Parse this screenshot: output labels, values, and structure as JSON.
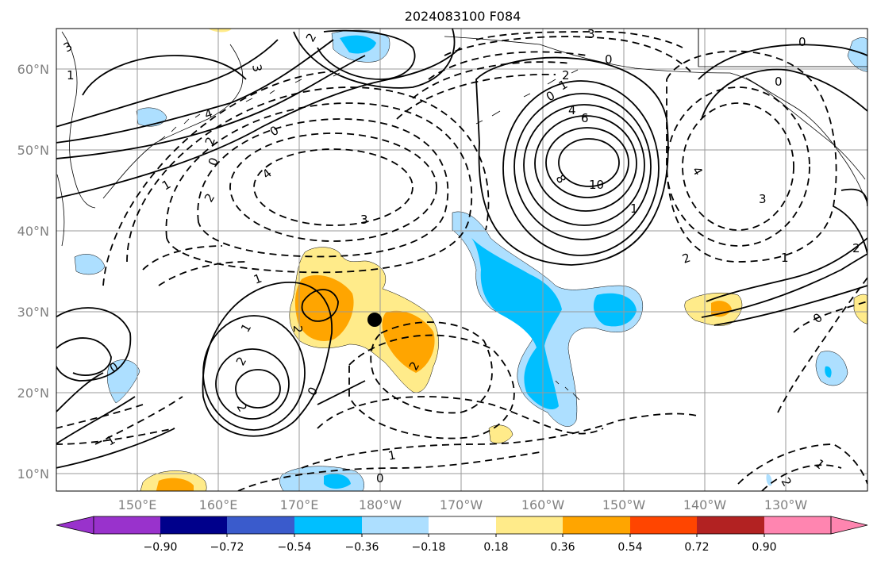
{
  "title": "2024083100 F084",
  "lat_labels": [
    "60°N",
    "50°N",
    "40°N",
    "30°N",
    "20°N",
    "10°N"
  ],
  "lon_labels": [
    "150°E",
    "160°E",
    "170°E",
    "180°W",
    "170°W",
    "160°W",
    "150°W",
    "140°W",
    "130°W"
  ],
  "colorbar": {
    "tick_labels": [
      "−0.90",
      "−0.72",
      "−0.54",
      "−0.36",
      "−0.18",
      "0.18",
      "0.36",
      "0.54",
      "0.72",
      "0.90"
    ],
    "colors": [
      "#9932CC",
      "#00008B",
      "#3A5BCC",
      "#00BFFF",
      "#ADDFFF",
      "#FFFFFF",
      "#FFEB8A",
      "#FFA500",
      "#FF4500",
      "#B22222",
      "#FF85B0"
    ]
  },
  "contour_labels": [
    "2",
    "3",
    "4",
    "2",
    "0",
    "1",
    "0",
    "2",
    "3",
    "4",
    "1",
    "0",
    "1",
    "2",
    "4",
    "6",
    "8",
    "10",
    "1",
    "0",
    "0",
    "4",
    "3",
    "3",
    "0",
    "2",
    "1",
    "2",
    "2",
    "0",
    "1",
    "2",
    "2",
    "2",
    "0",
    "1",
    "1",
    "0",
    "0",
    "1",
    "2",
    "3",
    "1"
  ],
  "marker": {
    "lat": 29,
    "lon": "180°W"
  }
}
